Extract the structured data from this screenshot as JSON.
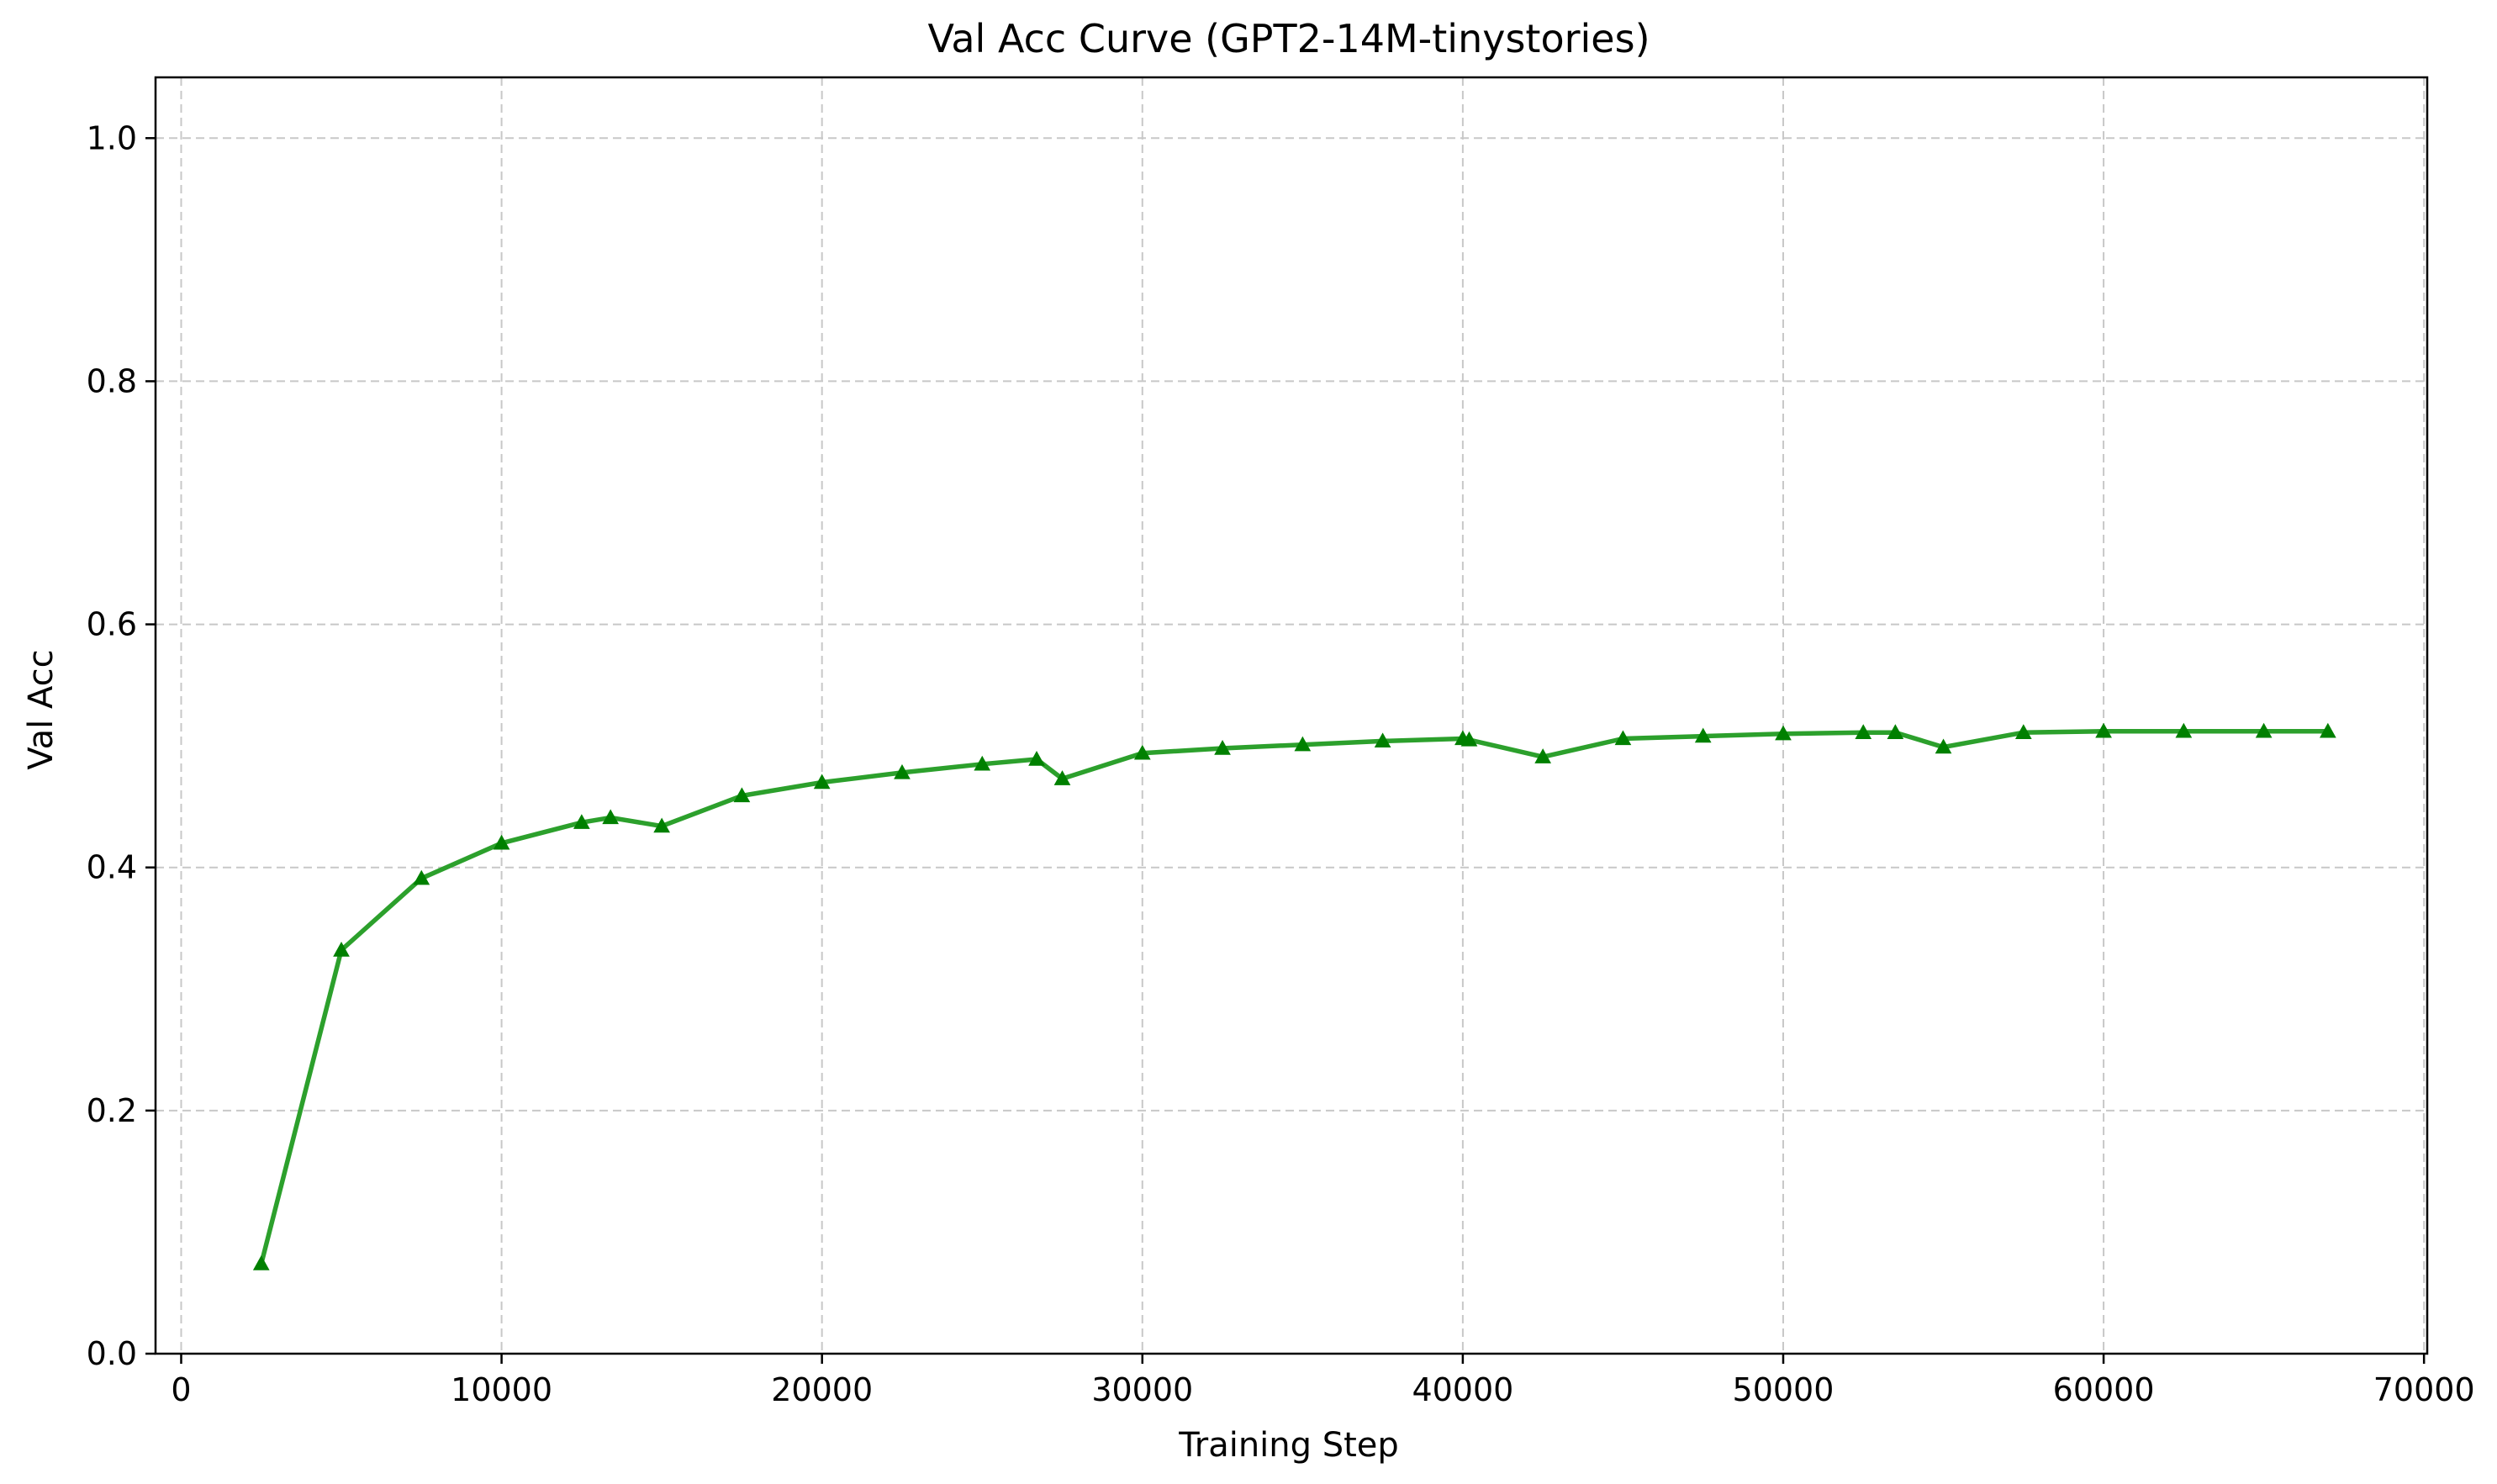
{
  "chart_data": {
    "type": "line",
    "title": "Val Acc Curve (GPT2-14M-tinystories)",
    "xlabel": "Training Step",
    "ylabel": "Val Acc",
    "xlim": [
      -800,
      70100
    ],
    "ylim": [
      0,
      1.05
    ],
    "xticks": [
      0,
      10000,
      20000,
      30000,
      40000,
      50000,
      60000,
      70000
    ],
    "yticks": [
      0.0,
      0.2,
      0.4,
      0.6,
      0.8,
      1.0
    ],
    "xtick_labels": [
      "0",
      "10000",
      "20000",
      "30000",
      "40000",
      "50000",
      "60000",
      "70000"
    ],
    "ytick_labels": [
      "0.0",
      "0.2",
      "0.4",
      "0.6",
      "0.8",
      "1.0"
    ],
    "grid": true,
    "legend": "none",
    "series": [
      {
        "color": "#2ca02c",
        "marker_color": "#008000",
        "marker": "triangle-up",
        "x": [
          2500,
          5000,
          7500,
          10000,
          12500,
          13400,
          15000,
          17500,
          20000,
          22500,
          25000,
          26700,
          27500,
          30000,
          32500,
          35000,
          37500,
          40000,
          40200,
          42500,
          45000,
          47500,
          50000,
          52500,
          53500,
          55000,
          57500,
          60000,
          62500,
          65000,
          67000
        ],
        "y": [
          0.074,
          0.332,
          0.391,
          0.42,
          0.437,
          0.441,
          0.434,
          0.459,
          0.47,
          0.478,
          0.485,
          0.489,
          0.473,
          0.494,
          0.498,
          0.501,
          0.504,
          0.506,
          0.505,
          0.491,
          0.506,
          0.508,
          0.51,
          0.511,
          0.511,
          0.499,
          0.511,
          0.512,
          0.512,
          0.512,
          0.512
        ]
      }
    ]
  }
}
